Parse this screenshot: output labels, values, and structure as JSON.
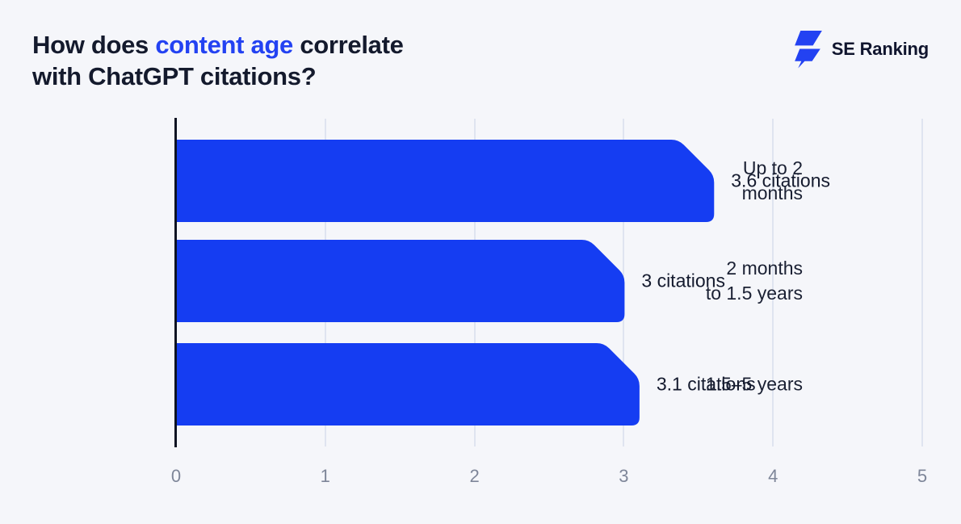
{
  "background": "#f5f6fa",
  "header": {
    "title": {
      "line1_before": "How does ",
      "line1_highlight": "content age",
      "line1_after": " correlate",
      "line2": "with ChatGPT citations?",
      "text_color": "#141a2d",
      "highlight_color": "#2342f2"
    },
    "logo": {
      "name": "SE Ranking",
      "icon": "lightning-bolt",
      "icon_color": "#2342f2",
      "text_color": "#10152e"
    }
  },
  "chart_data": {
    "type": "bar",
    "orientation": "horizontal",
    "title": "How does content age correlate with ChatGPT citations?",
    "categories": [
      "Up to 2 months",
      "2 months to 1.5 years",
      "1.5–5 years"
    ],
    "category_lines": [
      [
        "Up to 2",
        "months"
      ],
      [
        "2 months",
        "to 1.5 years"
      ],
      [
        "1.5–5 years"
      ]
    ],
    "values": [
      3.6,
      3,
      3.1
    ],
    "value_labels": [
      "3.6 citations",
      "3 citations",
      "3.1 citations"
    ],
    "xlabel": "",
    "ylabel": "",
    "xlim": [
      0,
      5
    ],
    "x_ticks": [
      0,
      1,
      2,
      3,
      4,
      5
    ],
    "grid": true,
    "legend": false,
    "bar_color": "#153df2",
    "gridline_color": "#dfe4f0",
    "axis_line_color": "#0d1322",
    "tick_label_color": "#7e8699",
    "label_color": "#1a2033"
  }
}
